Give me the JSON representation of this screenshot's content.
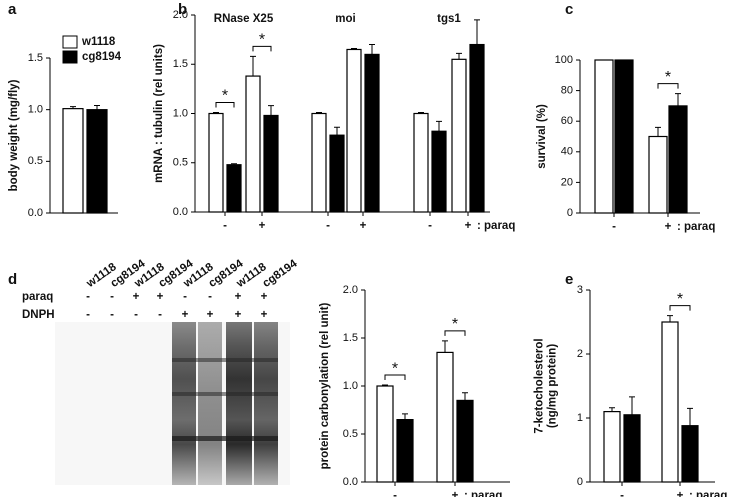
{
  "chart_data": [
    {
      "type": "bar",
      "panel": "a",
      "ylabel": [
        "body weight (mg/fly)"
      ],
      "categories": [
        null
      ],
      "series": [
        {
          "name": "w1118",
          "color": "#ffffff",
          "values": [
            1.01
          ],
          "errors": [
            0.02
          ]
        },
        {
          "name": "cg8194",
          "color": "#000000",
          "values": [
            1.0
          ],
          "errors": [
            0.04
          ]
        }
      ],
      "ylim": [
        0,
        1.5
      ],
      "yticks": [
        {
          "value": 0,
          "label": "0.0"
        },
        {
          "value": 0.5,
          "label": "0.5"
        },
        {
          "value": 1,
          "label": "1.0"
        },
        {
          "value": 1.5,
          "label": "1.5"
        }
      ]
    },
    {
      "type": "bar",
      "panel": "b",
      "ylabel": [
        "mRNA : tubulin (rel units)"
      ],
      "group_labels": [
        "RNase X25",
        "moi",
        "tgs1"
      ],
      "categories": [
        "-",
        "+",
        "-",
        "+",
        "-",
        "+"
      ],
      "xlabel": ": paraq",
      "series": [
        {
          "color": "#ffffff",
          "values": [
            1.0,
            1.38,
            1.0,
            1.65,
            1.0,
            1.55
          ],
          "errors": [
            0.01,
            0.2,
            0.01,
            0.01,
            0.01,
            0.06
          ]
        },
        {
          "color": "#000000",
          "values": [
            0.48,
            0.98,
            0.78,
            1.6,
            0.82,
            1.7
          ],
          "errors": [
            0.01,
            0.1,
            0.08,
            0.1,
            0.1,
            0.25
          ]
        }
      ],
      "annotations": [
        {
          "text": "*",
          "category": 0
        },
        {
          "text": "*",
          "category": 1
        }
      ],
      "ylim": [
        0,
        2
      ],
      "yticks": [
        {
          "value": 0,
          "label": "0.0"
        },
        {
          "value": 0.5,
          "label": "0.5"
        },
        {
          "value": 1,
          "label": "1.0"
        },
        {
          "value": 1.5,
          "label": "1.5"
        },
        {
          "value": 2,
          "label": "2.0"
        }
      ]
    },
    {
      "type": "bar",
      "panel": "c",
      "ylabel": [
        "survival (%)"
      ],
      "categories": [
        "-",
        "+"
      ],
      "xlabel": ": paraq",
      "series": [
        {
          "color": "#ffffff",
          "values": [
            100,
            50
          ],
          "errors": [
            null,
            6
          ]
        },
        {
          "color": "#000000",
          "values": [
            100,
            70
          ],
          "errors": [
            null,
            8
          ]
        }
      ],
      "annotations": [
        {
          "text": "*",
          "category": 1
        }
      ],
      "ylim": [
        0,
        100
      ],
      "yticks": [
        0,
        20,
        40,
        60,
        80,
        100
      ]
    },
    {
      "type": "bar",
      "ylabel": [
        "protein carbonylation (rel unit)"
      ],
      "categories": [
        "-",
        "+"
      ],
      "xlabel": ": paraq",
      "series": [
        {
          "color": "#ffffff",
          "values": [
            1.0,
            1.35
          ],
          "errors": [
            0.01,
            0.12
          ]
        },
        {
          "color": "#000000",
          "values": [
            0.65,
            0.85
          ],
          "errors": [
            0.06,
            0.08
          ]
        }
      ],
      "annotations": [
        {
          "text": "*",
          "category": 0
        },
        {
          "text": "*",
          "category": 1
        }
      ],
      "ylim": [
        0,
        2
      ],
      "yticks": [
        {
          "value": 0,
          "label": "0.0"
        },
        {
          "value": 0.5,
          "label": "0.5"
        },
        {
          "value": 1,
          "label": "1.0"
        },
        {
          "value": 1.5,
          "label": "1.5"
        },
        {
          "value": 2,
          "label": "2.0"
        }
      ]
    },
    {
      "type": "bar",
      "panel": "e",
      "ylabel": [
        "7-ketocholesterol",
        "(ng/mg protein)"
      ],
      "categories": [
        "-",
        "+"
      ],
      "xlabel": ": paraq",
      "series": [
        {
          "color": "#ffffff",
          "values": [
            1.1,
            2.5
          ],
          "errors": [
            0.06,
            0.1
          ]
        },
        {
          "color": "#000000",
          "values": [
            1.05,
            0.88
          ],
          "errors": [
            0.28,
            0.27
          ]
        }
      ],
      "annotations": [
        {
          "text": "*",
          "category": 1
        }
      ],
      "ylim": [
        0,
        3
      ],
      "yticks": [
        0,
        1,
        2,
        3
      ]
    }
  ],
  "blot": {
    "panel": "d",
    "columns": [
      "w1118",
      "cg8194",
      "w1118",
      "cg8194",
      "w1118",
      "cg8194",
      "w1118",
      "cg8194"
    ],
    "rows": [
      {
        "label": "paraq",
        "marks": [
          "-",
          "-",
          "+",
          "+",
          "-",
          "-",
          "+",
          "+"
        ]
      },
      {
        "label": "DNPH",
        "marks": [
          "-",
          "-",
          "-",
          "-",
          "+",
          "+",
          "+",
          "+"
        ]
      }
    ]
  }
}
